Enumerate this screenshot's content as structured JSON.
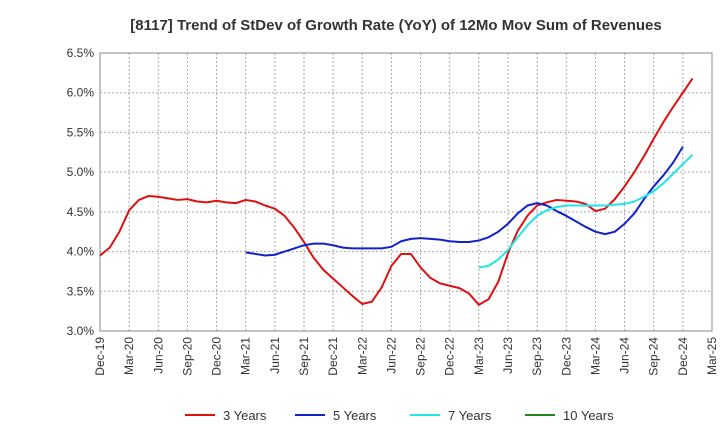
{
  "chart_data": {
    "type": "line",
    "title": "[8117]  Trend of StDev of Growth Rate (YoY) of 12Mo Mov Sum of Revenues",
    "xlabel": "",
    "ylabel": "",
    "ylim": [
      3.0,
      6.5
    ],
    "grid": true,
    "legend_position": "bottom",
    "y_ticks": [
      {
        "value": 3.0,
        "label": "3.0%"
      },
      {
        "value": 3.5,
        "label": "3.5%"
      },
      {
        "value": 4.0,
        "label": "4.0%"
      },
      {
        "value": 4.5,
        "label": "4.5%"
      },
      {
        "value": 5.0,
        "label": "5.0%"
      },
      {
        "value": 5.5,
        "label": "5.5%"
      },
      {
        "value": 6.0,
        "label": "6.0%"
      },
      {
        "value": 6.5,
        "label": "6.5%"
      }
    ],
    "x_ticks": [
      "Dec-19",
      "Mar-20",
      "Jun-20",
      "Sep-20",
      "Dec-20",
      "Mar-21",
      "Jun-21",
      "Sep-21",
      "Dec-21",
      "Mar-22",
      "Jun-22",
      "Sep-22",
      "Dec-22",
      "Mar-23",
      "Jun-23",
      "Sep-23",
      "Dec-23",
      "Mar-24",
      "Jun-24",
      "Sep-24",
      "Dec-24",
      "Mar-25"
    ],
    "series": [
      {
        "name": "3 Years",
        "color": "#dd1111",
        "start_month": 0,
        "values": [
          3.95,
          4.05,
          4.25,
          4.52,
          4.65,
          4.7,
          4.69,
          4.67,
          4.65,
          4.66,
          4.63,
          4.62,
          4.64,
          4.62,
          4.61,
          4.65,
          4.63,
          4.58,
          4.54,
          4.45,
          4.3,
          4.12,
          3.92,
          3.77,
          3.66,
          3.55,
          3.44,
          3.34,
          3.37,
          3.55,
          3.82,
          3.97,
          3.97,
          3.8,
          3.67,
          3.6,
          3.57,
          3.54,
          3.47,
          3.33,
          3.4,
          3.62,
          3.98,
          4.26,
          4.45,
          4.58,
          4.62,
          4.65,
          4.64,
          4.63,
          4.6,
          4.51,
          4.54,
          4.66,
          4.82,
          5.0,
          5.2,
          5.42,
          5.63,
          5.82,
          6.0,
          6.18
        ]
      },
      {
        "name": "5 Years",
        "color": "#1122cc",
        "start_month": 15,
        "values": [
          3.99,
          3.97,
          3.95,
          3.96,
          4.0,
          4.04,
          4.08,
          4.1,
          4.1,
          4.08,
          4.05,
          4.04,
          4.04,
          4.04,
          4.04,
          4.06,
          4.13,
          4.16,
          4.17,
          4.16,
          4.15,
          4.13,
          4.12,
          4.12,
          4.14,
          4.18,
          4.25,
          4.35,
          4.48,
          4.58,
          4.61,
          4.58,
          4.51,
          4.45,
          4.38,
          4.31,
          4.25,
          4.22,
          4.25,
          4.35,
          4.48,
          4.66,
          4.82,
          4.96,
          5.12,
          5.32
        ]
      },
      {
        "name": "7 Years",
        "color": "#22e5e5",
        "start_month": 39,
        "values": [
          3.8,
          3.82,
          3.9,
          4.02,
          4.18,
          4.33,
          4.45,
          4.52,
          4.56,
          4.58,
          4.58,
          4.58,
          4.58,
          4.58,
          4.59,
          4.6,
          4.63,
          4.69,
          4.76,
          4.86,
          4.98,
          5.1,
          5.22
        ]
      },
      {
        "name": "10 Years",
        "color": "#228822",
        "start_month": 0,
        "values": []
      }
    ]
  }
}
